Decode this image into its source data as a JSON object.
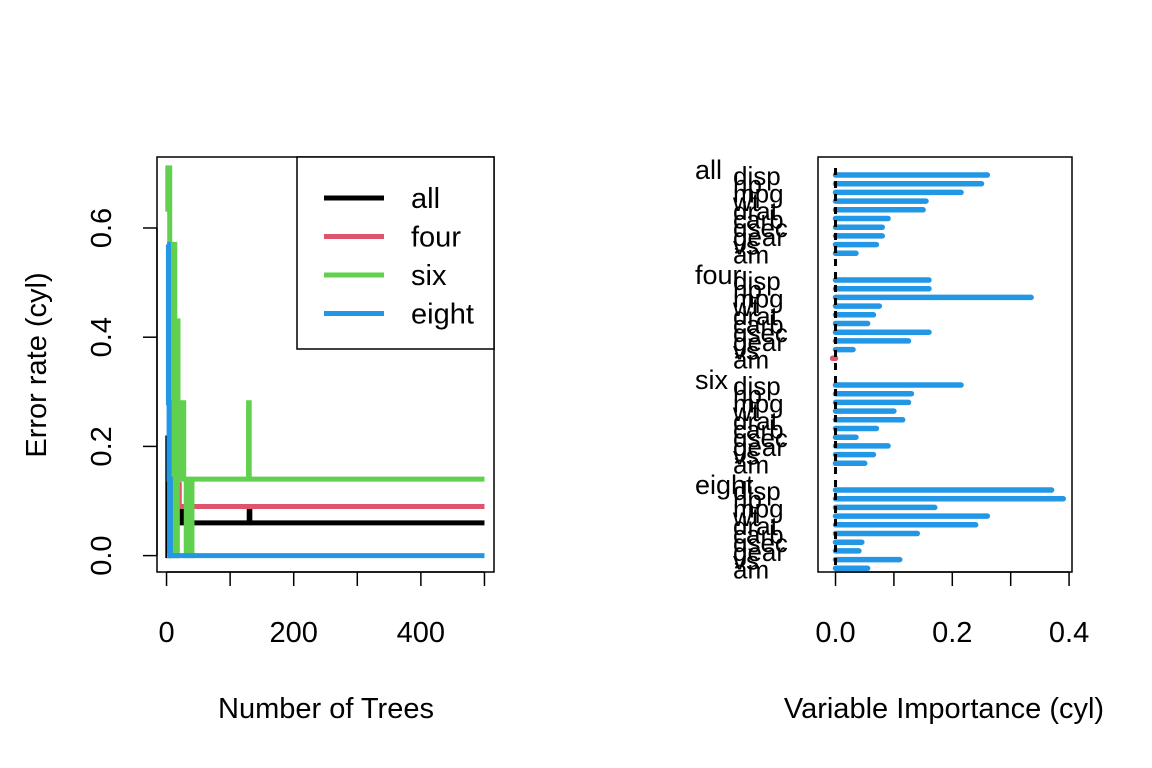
{
  "colors": {
    "all": "#000000",
    "four": "#DF536B",
    "six": "#61D04F",
    "eight": "#2297E6"
  },
  "chart_data": [
    {
      "type": "line",
      "xlabel": "Number of Trees",
      "ylabel": "Error rate (cyl)",
      "xlim": [
        -15,
        515
      ],
      "ylim": [
        -0.03,
        0.73
      ],
      "xticks": [
        0,
        100,
        200,
        300,
        400,
        500
      ],
      "xtick_labels": [
        "0",
        "",
        "200",
        "",
        "400",
        ""
      ],
      "yticks": [
        0.0,
        0.2,
        0.4,
        0.6
      ],
      "ytick_labels": [
        "0.0",
        "0.2",
        "0.4",
        "0.6"
      ],
      "legend_position": "top-right",
      "series": [
        {
          "name": "all",
          "color": "#000000",
          "points": [
            [
              1,
              0.22
            ],
            [
              2,
              0.0
            ],
            [
              3,
              0.14
            ],
            [
              15,
              0.14
            ],
            [
              16,
              0.09
            ],
            [
              22,
              0.09
            ],
            [
              24,
              0.06
            ],
            [
              129,
              0.06
            ],
            [
              130,
              0.09
            ],
            [
              131,
              0.06
            ],
            [
              500,
              0.06
            ]
          ]
        },
        {
          "name": "four",
          "color": "#DF536B",
          "points": [
            [
              1,
              0.0
            ],
            [
              14,
              0.0
            ],
            [
              16,
              0.28
            ],
            [
              18,
              0.13
            ],
            [
              20,
              0.09
            ],
            [
              500,
              0.09
            ]
          ]
        },
        {
          "name": "six",
          "color": "#61D04F",
          "points": [
            [
              1,
              0.63
            ],
            [
              2,
              0.71
            ],
            [
              4,
              0.71
            ],
            [
              5,
              0.0
            ],
            [
              11,
              0.57
            ],
            [
              13,
              0.0
            ],
            [
              17,
              0.43
            ],
            [
              18,
              0.14
            ],
            [
              25,
              0.28
            ],
            [
              27,
              0.14
            ],
            [
              31,
              0.0
            ],
            [
              34,
              0.14
            ],
            [
              38,
              0.0
            ],
            [
              40,
              0.14
            ],
            [
              128,
              0.14
            ],
            [
              129,
              0.28
            ],
            [
              130,
              0.14
            ],
            [
              500,
              0.14
            ]
          ]
        },
        {
          "name": "eight",
          "color": "#2297E6",
          "points": [
            [
              1,
              0.57
            ],
            [
              3,
              0.28
            ],
            [
              4,
              0.14
            ],
            [
              6,
              0.0
            ],
            [
              500,
              0.0
            ]
          ]
        }
      ]
    },
    {
      "type": "bar",
      "orientation": "horizontal",
      "xlabel": "Variable Importance (cyl)",
      "xlim": [
        -0.03,
        0.405
      ],
      "xticks": [
        0.0,
        0.1,
        0.2,
        0.3,
        0.4
      ],
      "xtick_labels": [
        "0.0",
        "0.2",
        "0.4"
      ],
      "xtick_label_values": [
        0.0,
        0.2,
        0.4
      ],
      "variables": [
        "disp",
        "hp",
        "mpg",
        "wt",
        "drat",
        "carb",
        "qsec",
        "gear",
        "vs",
        "am"
      ],
      "variable_labels": [
        "disp",
        "hp",
        "mpg",
        "wt",
        "drat",
        "carb",
        "qsec",
        "gear",
        "vs",
        "am"
      ],
      "groups": [
        {
          "name": "all",
          "color": "#000000",
          "values": [
            0.26,
            0.25,
            0.215,
            0.155,
            0.15,
            0.09,
            0.08,
            0.08,
            0.07,
            0.035
          ]
        },
        {
          "name": "four",
          "color": "#DF536B",
          "values": [
            0.16,
            0.16,
            0.335,
            0.075,
            0.065,
            0.055,
            0.16,
            0.125,
            0.03,
            -0.005
          ]
        },
        {
          "name": "six",
          "color": "#61D04F",
          "values": [
            0.215,
            0.13,
            0.125,
            0.1,
            0.115,
            0.07,
            0.035,
            0.09,
            0.065,
            0.05
          ]
        },
        {
          "name": "eight",
          "color": "#2297E6",
          "values": [
            0.37,
            0.39,
            0.17,
            0.26,
            0.24,
            0.14,
            0.045,
            0.04,
            0.11,
            0.055
          ]
        }
      ]
    }
  ]
}
